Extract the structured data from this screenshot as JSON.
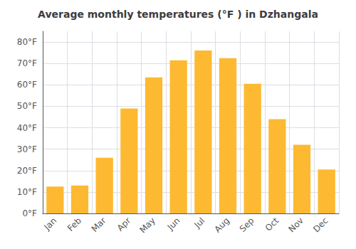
{
  "chart_data": {
    "type": "bar",
    "title": "Average monthly temperatures (°F ) in Dzhangala",
    "categories": [
      "Jan",
      "Feb",
      "Mar",
      "Apr",
      "May",
      "Jun",
      "Jul",
      "Aug",
      "Sep",
      "Oct",
      "Nov",
      "Dec"
    ],
    "values": [
      12.5,
      13,
      26,
      49,
      63.5,
      71.5,
      76,
      72.5,
      60.5,
      44,
      32,
      20.5
    ],
    "color": "#FDB931",
    "ylim": [
      0,
      85
    ],
    "yticks": [
      {
        "value": 0,
        "label": "0°F"
      },
      {
        "value": 10,
        "label": "10°F"
      },
      {
        "value": 20,
        "label": "20°F"
      },
      {
        "value": 30,
        "label": "30°F"
      },
      {
        "value": 40,
        "label": "40°F"
      },
      {
        "value": 50,
        "label": "50°F"
      },
      {
        "value": 60,
        "label": "60°F"
      },
      {
        "value": 70,
        "label": "70°F"
      },
      {
        "value": 80,
        "label": "80°F"
      }
    ],
    "grid": true
  }
}
